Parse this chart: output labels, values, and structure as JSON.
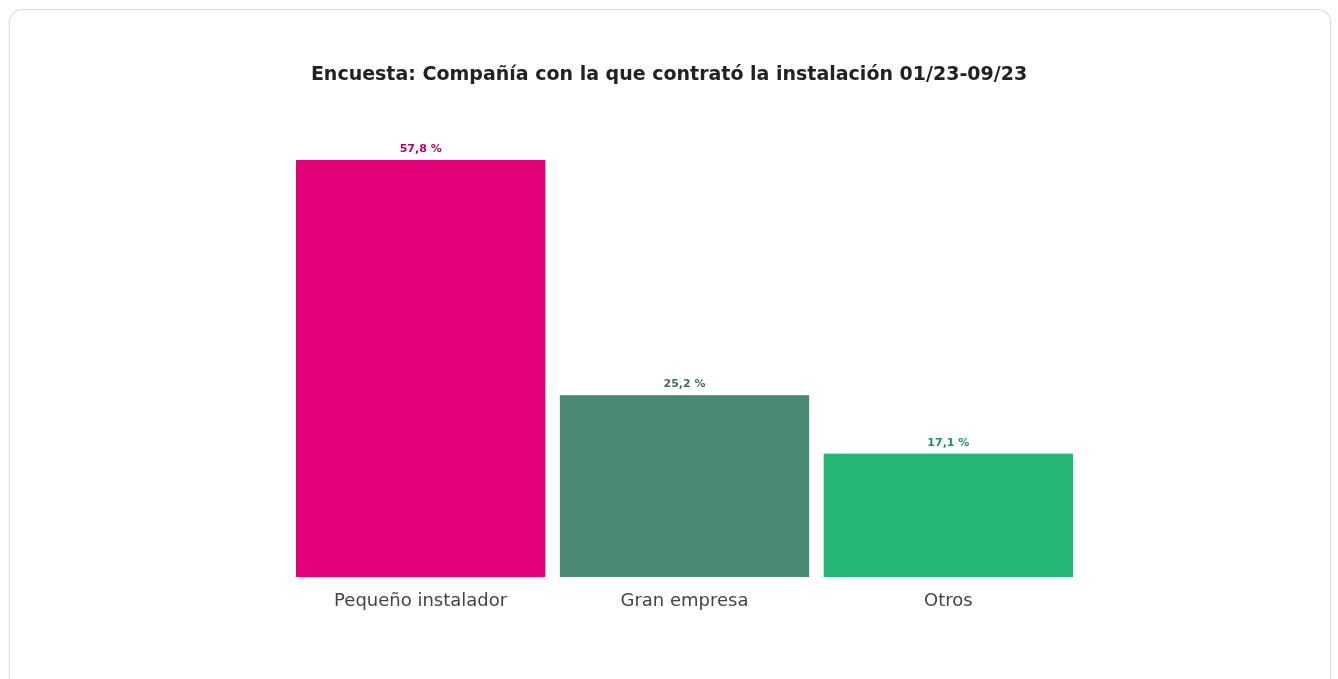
{
  "chart_data": {
    "type": "bar",
    "title": "Encuesta: Compañía con la que contrató la instalación 01/23-09/23",
    "categories": [
      "Pequeño instalador",
      "Gran empresa",
      "Otros"
    ],
    "values": [
      57.8,
      25.2,
      17.1
    ],
    "colors": [
      "#e2007a",
      "#4a8a73",
      "#25b574"
    ],
    "value_labels": [
      "57,8 %",
      "25,2 %",
      "17,1 %"
    ]
  }
}
